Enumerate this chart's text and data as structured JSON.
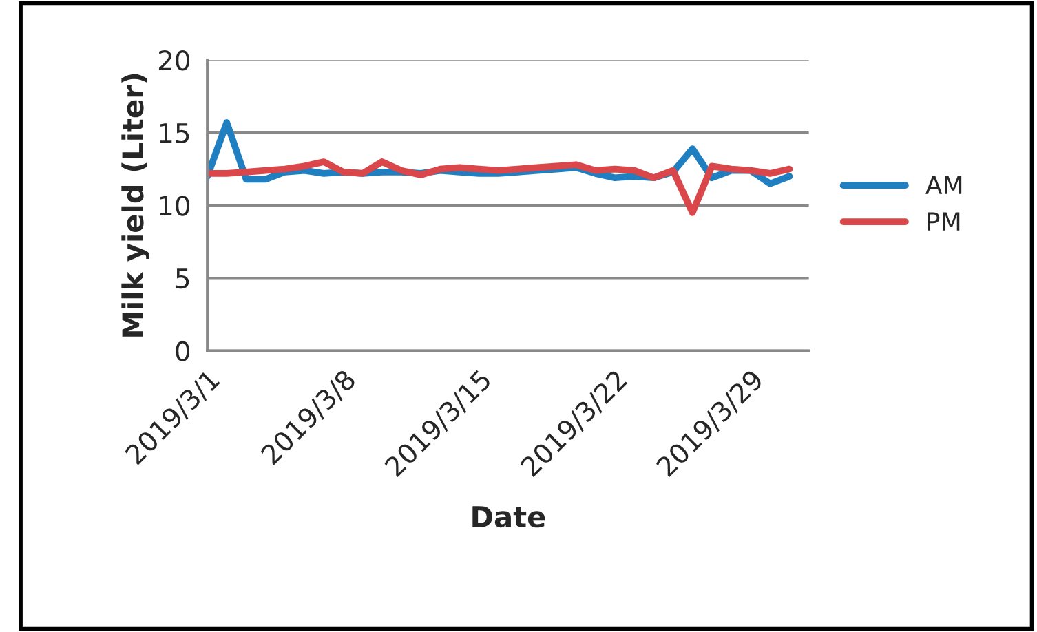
{
  "chart_data": {
    "type": "line",
    "xlabel": "Date",
    "ylabel": "Milk yield (Liter)",
    "x": [
      "2019-03-01",
      "2019-03-02",
      "2019-03-03",
      "2019-03-04",
      "2019-03-05",
      "2019-03-06",
      "2019-03-07",
      "2019-03-08",
      "2019-03-09",
      "2019-03-10",
      "2019-03-11",
      "2019-03-12",
      "2019-03-13",
      "2019-03-14",
      "2019-03-15",
      "2019-03-16",
      "2019-03-17",
      "2019-03-18",
      "2019-03-19",
      "2019-03-20",
      "2019-03-21",
      "2019-03-22",
      "2019-03-23",
      "2019-03-24",
      "2019-03-25",
      "2019-03-26",
      "2019-03-27",
      "2019-03-28",
      "2019-03-29",
      "2019-03-30",
      "2019-03-31"
    ],
    "series": [
      {
        "name": "AM",
        "color": "#1f7fc1",
        "values": [
          12.0,
          15.7,
          11.8,
          11.8,
          12.3,
          12.4,
          12.2,
          12.3,
          12.2,
          12.3,
          12.3,
          12.2,
          12.4,
          12.3,
          12.2,
          12.2,
          12.3,
          12.4,
          12.5,
          12.6,
          12.2,
          11.9,
          12.0,
          11.9,
          12.3,
          13.9,
          11.9,
          12.4,
          12.4,
          11.5,
          12.0
        ]
      },
      {
        "name": "PM",
        "color": "#d9474a",
        "values": [
          12.2,
          12.2,
          12.3,
          12.4,
          12.5,
          12.7,
          13.0,
          12.3,
          12.2,
          13.0,
          12.4,
          12.1,
          12.5,
          12.6,
          12.5,
          12.4,
          12.5,
          12.6,
          12.7,
          12.8,
          12.4,
          12.5,
          12.4,
          11.9,
          12.4,
          9.5,
          12.7,
          12.5,
          12.4,
          12.2,
          12.5
        ]
      }
    ],
    "xlim": [
      "2019-03-01",
      "2019-04-01"
    ],
    "xticks": [
      {
        "value": "2019-03-01",
        "label": "2019/3/1"
      },
      {
        "value": "2019-03-08",
        "label": "2019/3/8"
      },
      {
        "value": "2019-03-15",
        "label": "2019/3/15"
      },
      {
        "value": "2019-03-22",
        "label": "2019/3/22"
      },
      {
        "value": "2019-03-29",
        "label": "2019/3/29"
      }
    ],
    "ylim": [
      0,
      20
    ],
    "yticks": [
      0,
      5,
      10,
      15,
      20
    ],
    "grid": "y",
    "legend": "right",
    "marker": "none",
    "line_style": "solid"
  }
}
